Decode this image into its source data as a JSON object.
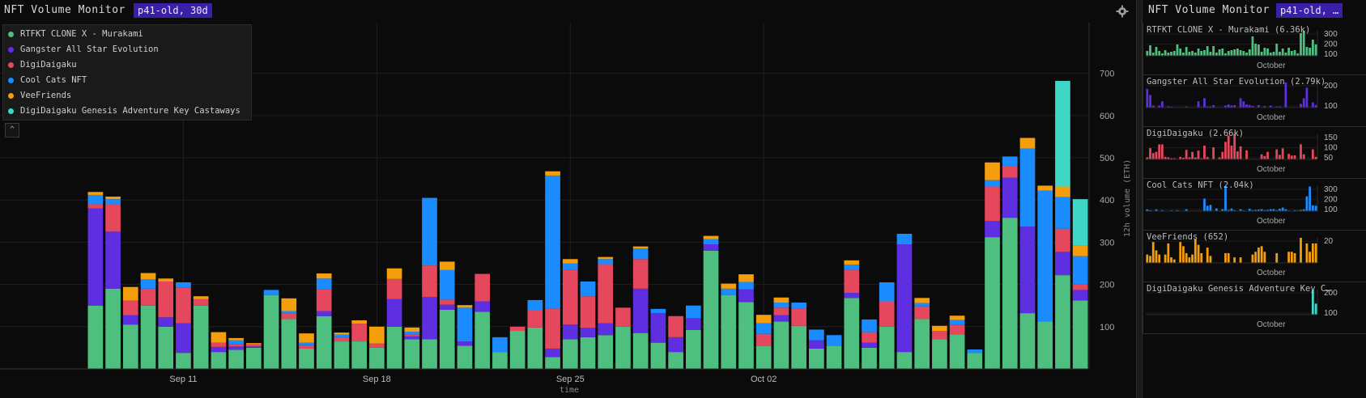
{
  "header": {
    "title": "NFT Volume Monitor",
    "badge": "p41-old, 30d"
  },
  "side_header": {
    "title": "NFT Volume Monitor",
    "badge": "p41-old, …"
  },
  "icons": {
    "settings": "gear-icon",
    "collapse": "chevron-up-icon"
  },
  "chart_data": {
    "type": "bar",
    "stacked": true,
    "xlabel": "time",
    "ylabel": "12h volume (ETH)",
    "ylim": [
      0,
      820
    ],
    "y_ticks": [
      100,
      200,
      300,
      400,
      500,
      600,
      700
    ],
    "x_ticks": [
      "Sep 11",
      "Sep 18",
      "Sep 25",
      "Oct 02"
    ],
    "grid": true,
    "legend_position": "top-left",
    "series": [
      {
        "name": "RTFKT CLONE X - Murakami",
        "color": "#4fbf7f",
        "values": [
          150,
          190,
          105,
          150,
          100,
          38,
          150,
          40,
          45,
          50,
          175,
          118,
          48,
          125,
          65,
          65,
          50,
          100,
          70,
          70,
          140,
          55,
          135,
          40,
          90,
          98,
          28,
          70,
          75,
          80,
          100,
          85,
          62,
          40,
          92,
          280,
          175,
          158,
          55,
          112,
          102,
          48,
          55,
          168,
          50,
          100,
          40,
          118,
          70,
          82,
          38,
          312,
          358,
          132,
          112,
          222,
          162
        ]
      },
      {
        "name": "Gangster All Star Evolution",
        "color": "#5e2fe0",
        "values": [
          230,
          135,
          22,
          0,
          22,
          70,
          0,
          12,
          8,
          3,
          0,
          0,
          0,
          12,
          0,
          0,
          0,
          65,
          7,
          100,
          12,
          10,
          25,
          0,
          0,
          0,
          20,
          35,
          22,
          28,
          0,
          105,
          70,
          35,
          28,
          15,
          0,
          30,
          0,
          15,
          0,
          20,
          0,
          12,
          12,
          0,
          255,
          0,
          0,
          0,
          0,
          38,
          95,
          205,
          0,
          55,
          25
        ]
      },
      {
        "name": "DigiDaigaku",
        "color": "#e5475c",
        "values": [
          10,
          65,
          35,
          40,
          85,
          85,
          15,
          10,
          5,
          5,
          0,
          14,
          8,
          52,
          10,
          42,
          10,
          48,
          5,
          75,
          12,
          0,
          65,
          0,
          10,
          40,
          95,
          130,
          75,
          140,
          45,
          70,
          0,
          50,
          0,
          0,
          0,
          0,
          28,
          18,
          40,
          0,
          0,
          55,
          25,
          60,
          0,
          30,
          20,
          22,
          0,
          82,
          28,
          0,
          0,
          55,
          13
        ]
      },
      {
        "name": "Cool Cats NFT",
        "color": "#1a8cff",
        "values": [
          22,
          12,
          0,
          22,
          0,
          12,
          0,
          0,
          10,
          0,
          12,
          5,
          6,
          25,
          6,
          0,
          0,
          0,
          6,
          160,
          70,
          80,
          0,
          35,
          0,
          25,
          315,
          15,
          35,
          12,
          0,
          25,
          10,
          0,
          30,
          12,
          15,
          18,
          25,
          12,
          15,
          25,
          25,
          12,
          30,
          45,
          25,
          8,
          0,
          12,
          8,
          15,
          22,
          185,
          310,
          75,
          67
        ]
      },
      {
        "name": "VeeFriends",
        "color": "#f59e0b",
        "values": [
          7,
          6,
          32,
          15,
          7,
          0,
          7,
          25,
          5,
          3,
          0,
          30,
          22,
          12,
          5,
          8,
          40,
          25,
          10,
          0,
          20,
          6,
          0,
          0,
          0,
          0,
          10,
          10,
          0,
          5,
          0,
          5,
          0,
          0,
          0,
          8,
          12,
          18,
          20,
          12,
          0,
          0,
          0,
          10,
          0,
          0,
          0,
          12,
          12,
          10,
          0,
          42,
          0,
          25,
          12,
          25,
          25
        ]
      },
      {
        "name": "DigiDaigaku Genesis Adventure Key Castaways",
        "color": "#3fd6c6",
        "values": [
          0,
          0,
          0,
          0,
          0,
          0,
          0,
          0,
          0,
          0,
          0,
          0,
          0,
          0,
          0,
          0,
          0,
          0,
          0,
          0,
          0,
          0,
          0,
          0,
          0,
          0,
          0,
          0,
          0,
          0,
          0,
          0,
          0,
          0,
          0,
          0,
          0,
          0,
          0,
          0,
          0,
          0,
          0,
          0,
          0,
          0,
          0,
          0,
          0,
          0,
          0,
          0,
          0,
          0,
          0,
          250,
          110
        ]
      }
    ],
    "x_tick_positions": [
      5.5,
      16.5,
      27.5,
      38.5
    ],
    "sparklines": [
      {
        "title": "RTFKT CLONE X - Murakami (6.36k)",
        "color": "#4fbf7f",
        "ticks": [
          "300",
          "200",
          "100"
        ],
        "xlabel": "October",
        "values": [
          60,
          130,
          40,
          110,
          60,
          30,
          70,
          40,
          50,
          60,
          140,
          90,
          40,
          110,
          50,
          60,
          40,
          90,
          60,
          70,
          120,
          50,
          120,
          40,
          80,
          90,
          30,
          60,
          70,
          80,
          90,
          70,
          60,
          40,
          80,
          240,
          150,
          140,
          50,
          100,
          90,
          40,
          50,
          150,
          50,
          90,
          40,
          100,
          60,
          70,
          30,
          280,
          310,
          110,
          100,
          200,
          140
        ]
      },
      {
        "title": "Gangster All Star Evolution (2.79k)",
        "color": "#5e2fe0",
        "ticks": [
          "200",
          "100"
        ],
        "xlabel": "October",
        "values": [
          90,
          60,
          10,
          0,
          10,
          30,
          0,
          5,
          4,
          2,
          0,
          0,
          0,
          5,
          0,
          0,
          0,
          30,
          3,
          45,
          5,
          5,
          12,
          0,
          0,
          0,
          10,
          15,
          10,
          12,
          0,
          45,
          30,
          15,
          12,
          7,
          0,
          12,
          0,
          7,
          0,
          10,
          0,
          5,
          5,
          0,
          120,
          0,
          0,
          0,
          0,
          18,
          45,
          95,
          0,
          25,
          12
        ]
      },
      {
        "title": "DigiDaigaku (2.66k)",
        "color": "#e5475c",
        "ticks": [
          "150",
          "100",
          "50"
        ],
        "xlabel": "October",
        "values": [
          8,
          45,
          25,
          30,
          60,
          60,
          10,
          8,
          4,
          4,
          0,
          10,
          6,
          38,
          8,
          30,
          8,
          35,
          4,
          55,
          9,
          0,
          48,
          0,
          8,
          30,
          70,
          95,
          55,
          100,
          32,
          52,
          0,
          36,
          0,
          0,
          0,
          0,
          20,
          13,
          30,
          0,
          0,
          40,
          18,
          44,
          0,
          22,
          15,
          16,
          0,
          60,
          20,
          0,
          0,
          40,
          10
        ]
      },
      {
        "title": "Cool Cats NFT (2.04k)",
        "color": "#1a8cff",
        "ticks": [
          "300",
          "200",
          "100"
        ],
        "xlabel": "October",
        "values": [
          20,
          10,
          0,
          20,
          0,
          10,
          0,
          0,
          8,
          0,
          10,
          4,
          5,
          22,
          5,
          0,
          0,
          0,
          5,
          140,
          60,
          70,
          0,
          30,
          0,
          22,
          280,
          13,
          30,
          10,
          0,
          22,
          8,
          0,
          26,
          10,
          13,
          16,
          22,
          10,
          13,
          22,
          22,
          10,
          26,
          40,
          22,
          7,
          0,
          10,
          7,
          13,
          20,
          165,
          275,
          65,
          60
        ]
      },
      {
        "title": "VeeFriends (652)",
        "color": "#f59e0b",
        "ticks": [
          "20"
        ],
        "xlabel": "October",
        "values": [
          12,
          10,
          30,
          18,
          12,
          0,
          12,
          28,
          8,
          5,
          0,
          30,
          24,
          14,
          8,
          12,
          34,
          26,
          14,
          0,
          22,
          10,
          0,
          0,
          0,
          0,
          14,
          14,
          0,
          8,
          0,
          8,
          0,
          0,
          0,
          12,
          16,
          22,
          24,
          16,
          0,
          0,
          0,
          14,
          0,
          0,
          0,
          16,
          16,
          14,
          0,
          36,
          0,
          28,
          16,
          28,
          28
        ]
      },
      {
        "title": "DigiDaigaku Genesis Adventure Key C…",
        "color": "#3fd6c6",
        "ticks": [
          "200",
          "100"
        ],
        "xlabel": "October",
        "values": [
          0,
          0,
          0,
          0,
          0,
          0,
          0,
          0,
          0,
          0,
          0,
          0,
          0,
          0,
          0,
          0,
          0,
          0,
          0,
          0,
          0,
          0,
          0,
          0,
          0,
          0,
          0,
          0,
          0,
          0,
          0,
          0,
          0,
          0,
          0,
          0,
          0,
          0,
          0,
          0,
          0,
          0,
          0,
          0,
          0,
          0,
          0,
          0,
          0,
          0,
          0,
          0,
          0,
          0,
          0,
          250,
          110
        ]
      }
    ]
  }
}
